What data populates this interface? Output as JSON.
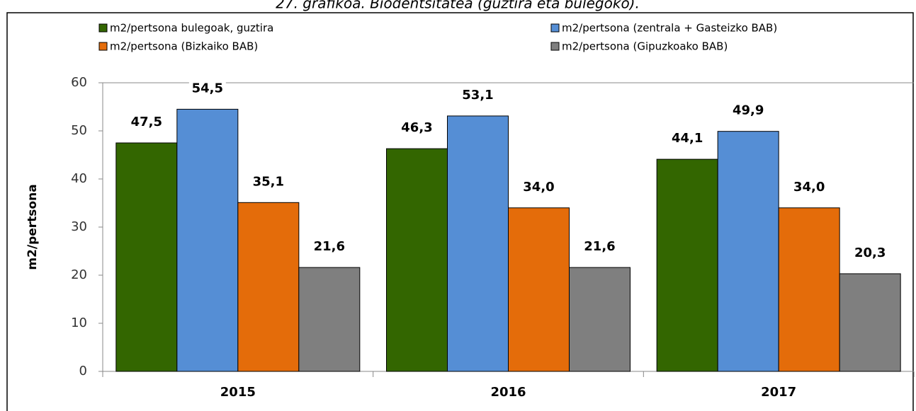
{
  "chart_data": {
    "type": "bar",
    "title": "27. grafikoa. Biodentsitatea (guztira eta bulegoko).",
    "ylabel": "m2/pertsona",
    "categories": [
      "2015",
      "2016",
      "2017"
    ],
    "series": [
      {
        "name": "m2/pertsona bulegoak, guztira",
        "color": "#336600",
        "values": [
          47.5,
          46.3,
          44.1
        ],
        "value_labels": [
          "47,5",
          "46,3",
          "44,1"
        ]
      },
      {
        "name": "m2/pertsona (zentrala + Gasteizko BAB)",
        "color": "#558ed5",
        "values": [
          54.5,
          53.1,
          49.9
        ],
        "value_labels": [
          "54,5",
          "53,1",
          "49,9"
        ]
      },
      {
        "name": "m2/pertsona (Bizkaiko BAB)",
        "color": "#e46c0a",
        "values": [
          35.1,
          34.0,
          34.0
        ],
        "value_labels": [
          "35,1",
          "34,0",
          "34,0"
        ]
      },
      {
        "name": "m2/pertsona (Gipuzkoako BAB)",
        "color": "#7f7f7f",
        "values": [
          21.6,
          21.6,
          20.3
        ],
        "value_labels": [
          "21,6",
          "21,6",
          "20,3"
        ]
      }
    ],
    "ylim": [
      0,
      60
    ],
    "yticks": [
      0,
      10,
      20,
      30,
      40,
      50,
      60
    ]
  }
}
